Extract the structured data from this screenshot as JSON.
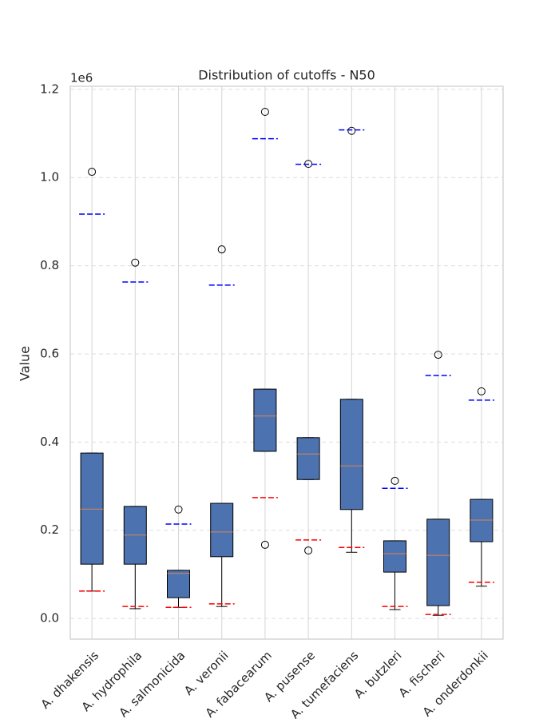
{
  "chart_data": {
    "type": "box",
    "title": "Distribution of cutoffs - N50",
    "ylabel": "Value",
    "offset_label": "1e6",
    "categories": [
      "A. dhakensis",
      "A. hydrophila",
      "A. salmonicida",
      "A. veronii",
      "A. fabacearum",
      "A. pusense",
      "A. tumefaciens",
      "A. butzleri",
      "A. fischeri",
      "A. onderdonkii"
    ],
    "boxes": [
      {
        "whislo": 62000,
        "q1": 123000,
        "med": 248000,
        "q3": 375000,
        "whishi": 375000,
        "fliers": [
          1013000
        ]
      },
      {
        "whislo": 22000,
        "q1": 123000,
        "med": 189000,
        "q3": 254000,
        "whishi": 254000,
        "fliers": [
          807000
        ]
      },
      {
        "whislo": 25000,
        "q1": 47000,
        "med": 102000,
        "q3": 109000,
        "whishi": 109000,
        "fliers": [
          247000
        ]
      },
      {
        "whislo": 27000,
        "q1": 140000,
        "med": 196000,
        "q3": 261000,
        "whishi": 261000,
        "fliers": [
          837000
        ]
      },
      {
        "whislo": 379000,
        "q1": 379000,
        "med": 459000,
        "q3": 520000,
        "whishi": 520000,
        "fliers": [
          1149000,
          167000
        ]
      },
      {
        "whislo": 315000,
        "q1": 315000,
        "med": 373000,
        "q3": 410000,
        "whishi": 410000,
        "fliers": [
          1031000,
          154000
        ]
      },
      {
        "whislo": 150000,
        "q1": 247000,
        "med": 346000,
        "q3": 497000,
        "whishi": 497000,
        "fliers": [
          1106000
        ]
      },
      {
        "whislo": 20000,
        "q1": 105000,
        "med": 147000,
        "q3": 176000,
        "whishi": 176000,
        "fliers": [
          312000
        ]
      },
      {
        "whislo": 7000,
        "q1": 29000,
        "med": 143000,
        "q3": 225000,
        "whishi": 225000,
        "fliers": [
          598000
        ]
      },
      {
        "whislo": 73000,
        "q1": 174000,
        "med": 223000,
        "q3": 270000,
        "whishi": 270000,
        "fliers": [
          515000
        ]
      }
    ],
    "low_cutoffs": [
      62000,
      27000,
      25000,
      33000,
      274000,
      178000,
      161000,
      27000,
      9000,
      82000
    ],
    "high_cutoffs": [
      917000,
      763000,
      214000,
      756000,
      1088000,
      1030000,
      1108000,
      295000,
      551000,
      495000
    ],
    "box_color": "#4c72b0",
    "median_color": "#dd8452",
    "low_cutoff_color": "#ff0000",
    "high_cutoff_color": "#0000ff",
    "ylim": [
      -47000,
      1207000
    ],
    "yticks": [
      {
        "value": 0,
        "label": "0.0"
      },
      {
        "value": 200000,
        "label": "0.2"
      },
      {
        "value": 400000,
        "label": "0.4"
      },
      {
        "value": 600000,
        "label": "0.6"
      },
      {
        "value": 800000,
        "label": "0.8"
      },
      {
        "value": 1000000,
        "label": "1.0"
      },
      {
        "value": 1200000,
        "label": "1.2"
      }
    ],
    "grid": true
  }
}
